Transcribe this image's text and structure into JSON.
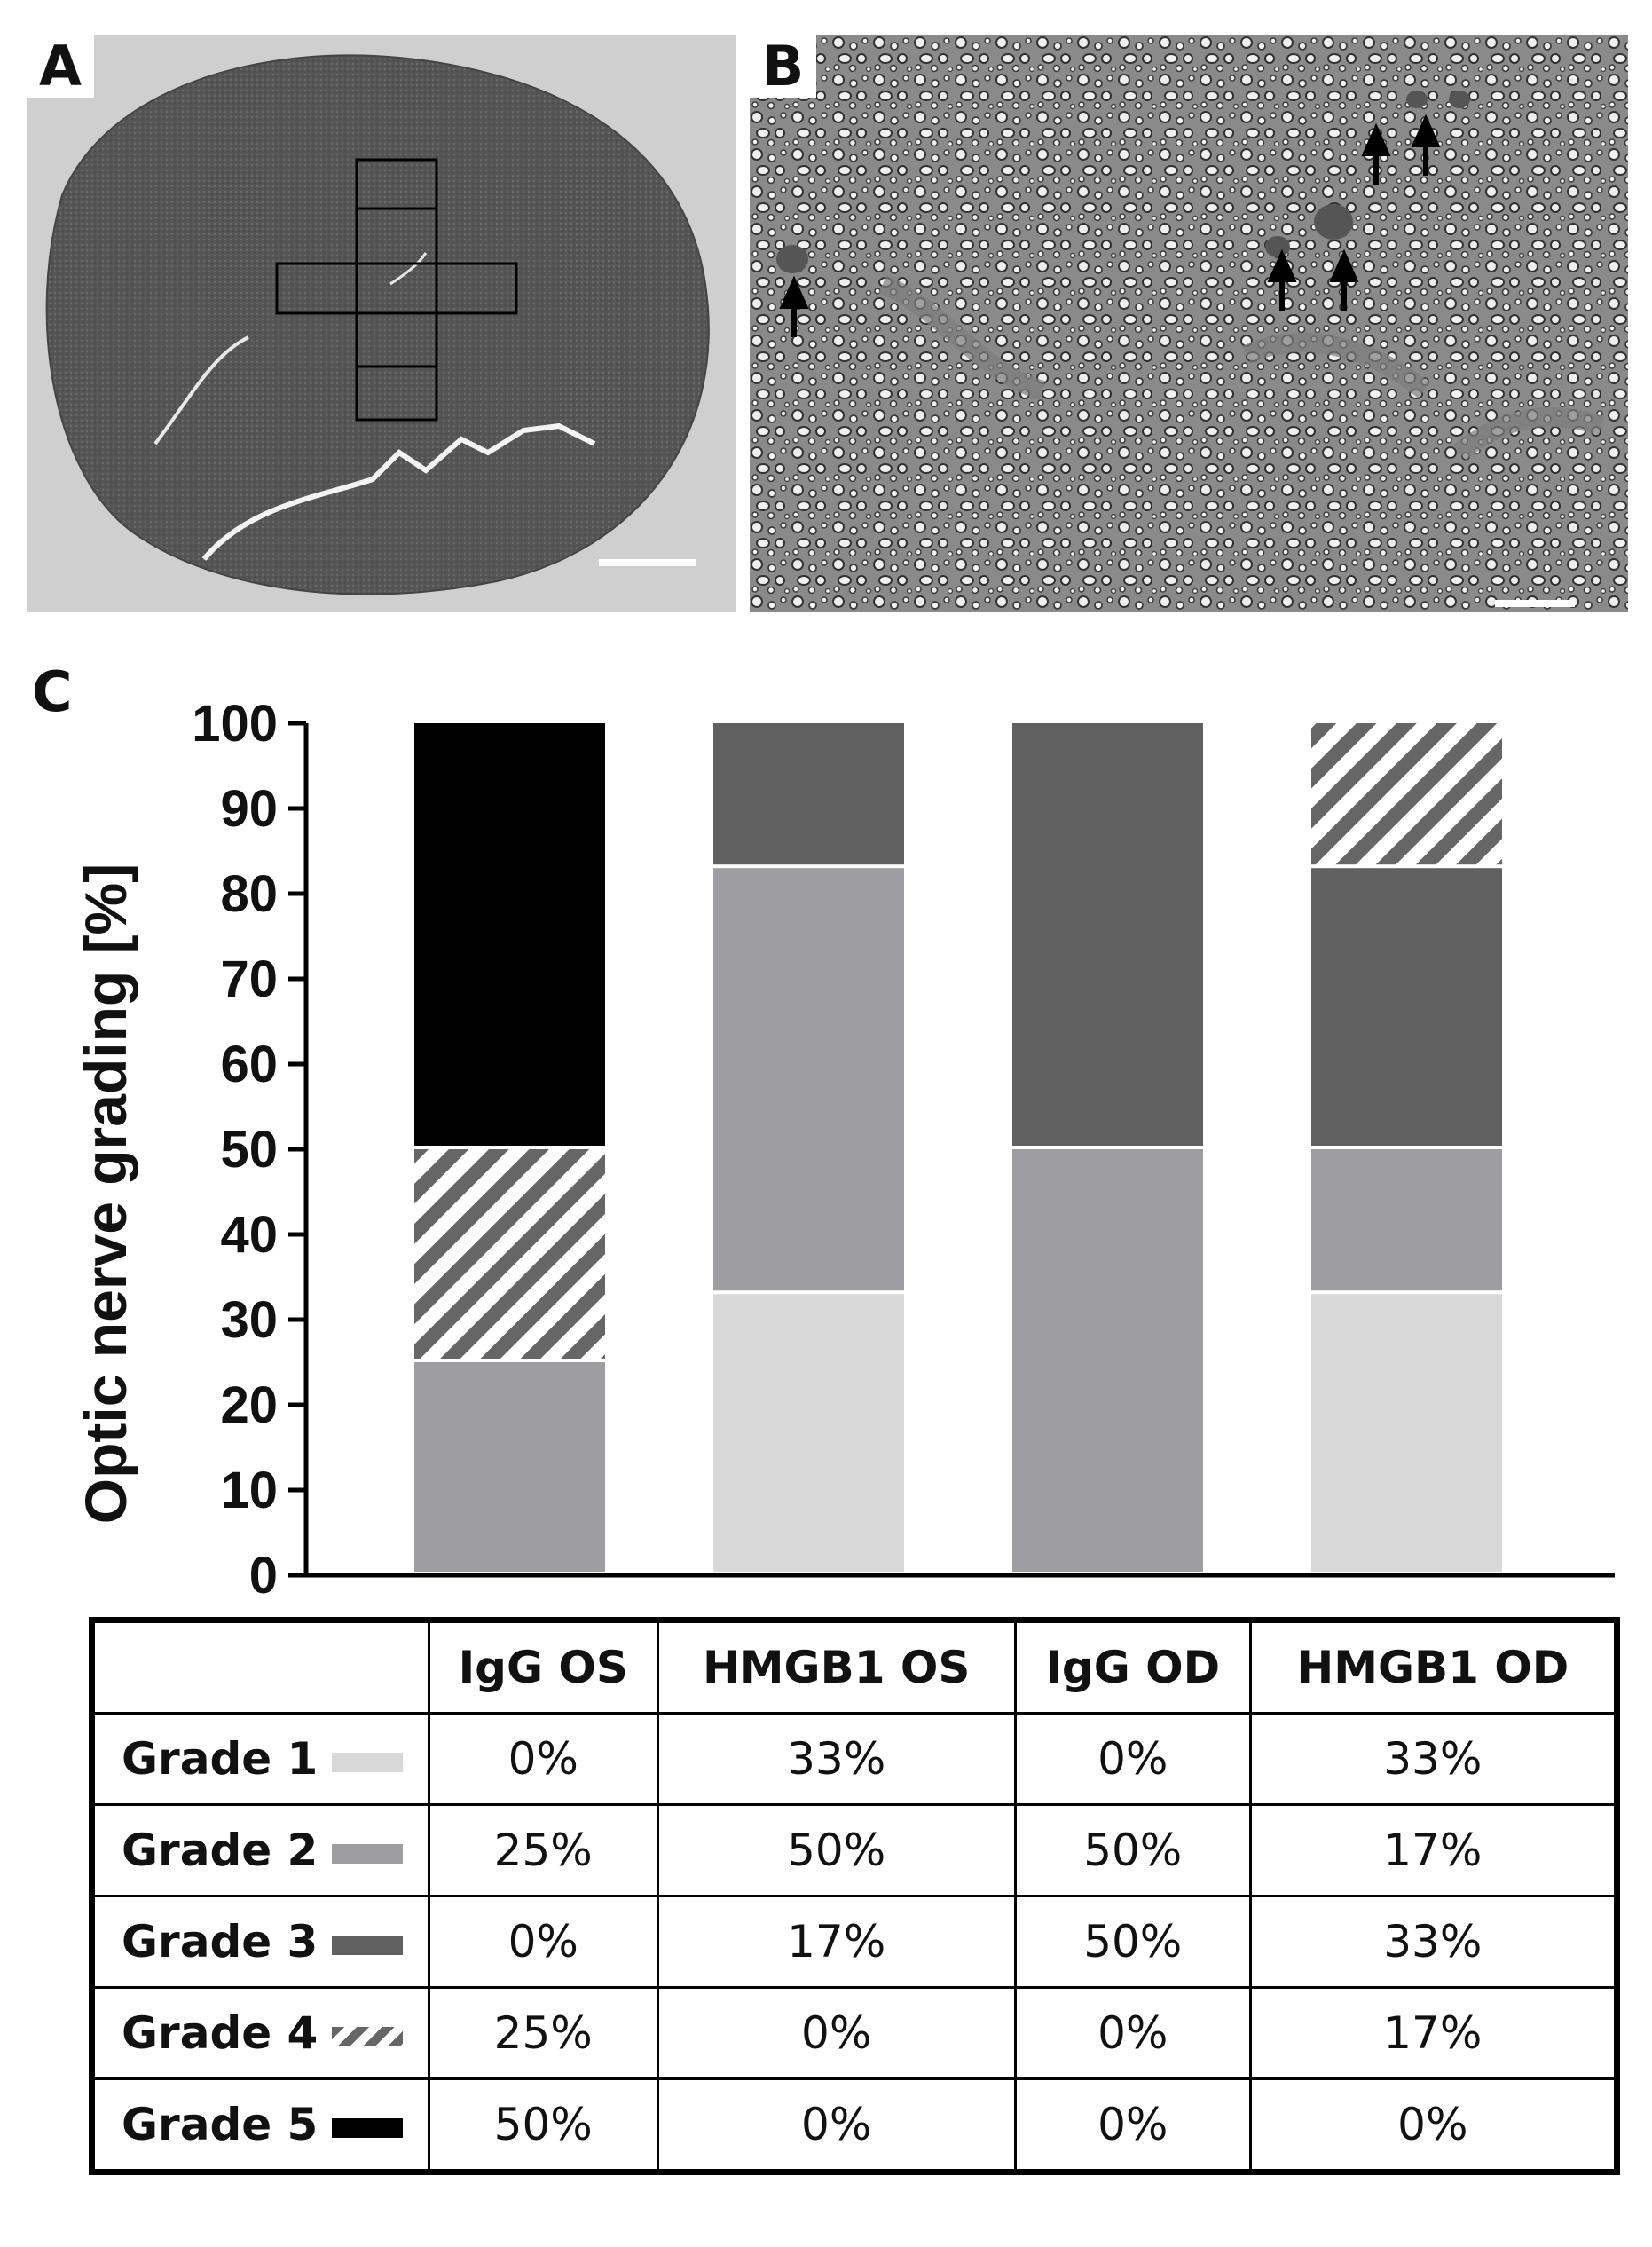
{
  "panels": {
    "a_label": "A",
    "b_label": "B",
    "c_label": "C"
  },
  "colors": {
    "grade1": "#d8d8d8",
    "grade2": "#9d9da2",
    "grade3": "#606060",
    "grade4": "hatch",
    "grade5": "#000000"
  },
  "chart_data": {
    "type": "bar",
    "stacked": true,
    "categories": [
      "IgG OS",
      "HMGB1 OS",
      "IgG OD",
      "HMGB1 OD"
    ],
    "series": [
      {
        "name": "Grade 1",
        "values": [
          0,
          33,
          0,
          33
        ]
      },
      {
        "name": "Grade 2",
        "values": [
          25,
          50,
          50,
          17
        ]
      },
      {
        "name": "Grade 3",
        "values": [
          0,
          17,
          50,
          33
        ]
      },
      {
        "name": "Grade 4",
        "values": [
          25,
          0,
          0,
          17
        ]
      },
      {
        "name": "Grade 5",
        "values": [
          50,
          0,
          0,
          0
        ]
      }
    ],
    "ylabel": "Optic nerve grading [%]",
    "ylim": [
      0,
      100
    ],
    "yticks": [
      "0",
      "10",
      "20",
      "30",
      "40",
      "50",
      "60",
      "70",
      "80",
      "90",
      "100"
    ],
    "grid": false
  },
  "table": {
    "headers": [
      "",
      "IgG OS",
      "HMGB1 OS",
      "IgG OD",
      "HMGB1 OD"
    ],
    "rows": [
      {
        "label": "Grade 1",
        "cells": [
          "0%",
          "33%",
          "0%",
          "33%"
        ]
      },
      {
        "label": "Grade 2",
        "cells": [
          "25%",
          "50%",
          "50%",
          "17%"
        ]
      },
      {
        "label": "Grade 3",
        "cells": [
          "0%",
          "17%",
          "50%",
          "33%"
        ]
      },
      {
        "label": "Grade 4",
        "cells": [
          "25%",
          "0%",
          "0%",
          "17%"
        ]
      },
      {
        "label": "Grade 5",
        "cells": [
          "50%",
          "0%",
          "0%",
          "0%"
        ]
      }
    ]
  }
}
